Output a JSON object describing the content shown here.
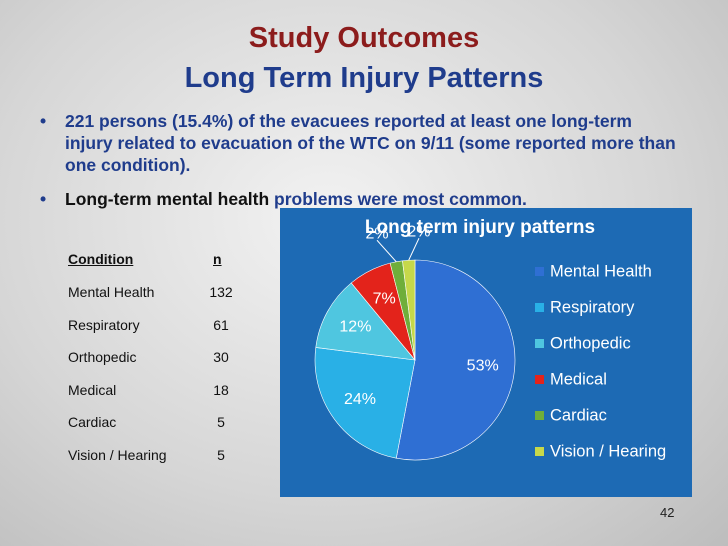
{
  "title": [
    "Study Outcomes",
    "Long Term Injury Patterns"
  ],
  "bullets": [
    [
      "221 persons (15.4%) of the evacuees reported at least one long-term injury related to evacuation of the WTC on 9/11 (some reported more than one condition)."
    ],
    [
      "Long-term mental health",
      " problems were most common."
    ]
  ],
  "table": {
    "header": [
      "Condition",
      "n"
    ],
    "rows": [
      [
        "Mental Health",
        "132"
      ],
      [
        "Respiratory",
        "61"
      ],
      [
        "Orthopedic",
        "30"
      ],
      [
        "Medical",
        "18"
      ],
      [
        "Cardiac",
        "5"
      ],
      [
        "Vision / Hearing",
        "5"
      ]
    ]
  },
  "page_number": "42",
  "chart_data": {
    "type": "pie",
    "title": "Long term injury patterns",
    "categories": [
      "Mental Health",
      "Respiratory",
      "Orthopedic",
      "Medical",
      "Cardiac",
      "Vision / Hearing"
    ],
    "values": [
      53,
      24,
      12,
      7,
      2,
      2
    ],
    "value_labels": [
      "53%",
      "24%",
      "12%",
      "7%",
      "2%",
      "2%"
    ],
    "colors": [
      "#2f6fd3",
      "#29b0e6",
      "#4fc6e0",
      "#e3231b",
      "#6fae3a",
      "#c6d84a"
    ],
    "legend": "right"
  }
}
